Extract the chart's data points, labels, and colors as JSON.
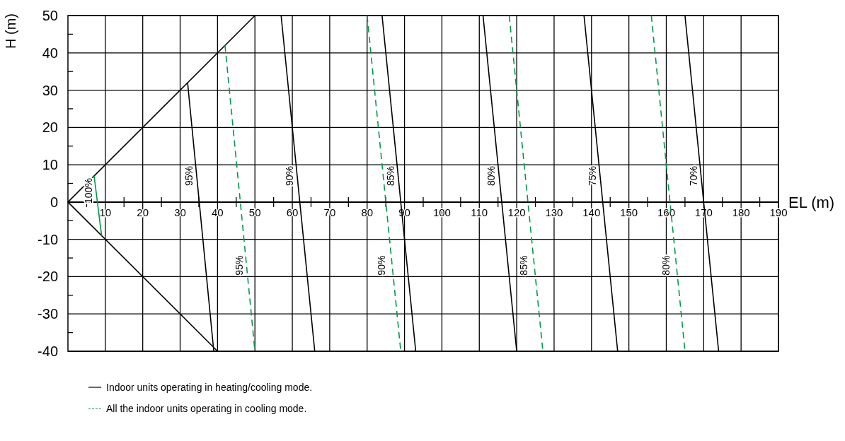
{
  "chart_data": {
    "type": "line",
    "xlabel": "EL (m)",
    "ylabel": "H (m)",
    "xlim": [
      0,
      190
    ],
    "ylim": [
      -40,
      50
    ],
    "xticks": [
      {
        "value": 5,
        "label": null
      },
      10,
      {
        "value": 15,
        "label": null
      },
      20,
      {
        "value": 25,
        "label": null
      },
      30,
      {
        "value": 35,
        "label": null
      },
      40,
      {
        "value": 45,
        "label": null
      },
      50,
      {
        "value": 55,
        "label": null
      },
      60,
      {
        "value": 65,
        "label": null
      },
      70,
      {
        "value": 75,
        "label": null
      },
      80,
      {
        "value": 85,
        "label": null
      },
      90,
      {
        "value": 95,
        "label": null
      },
      100,
      {
        "value": 105,
        "label": null
      },
      110,
      {
        "value": 115,
        "label": null
      },
      120,
      {
        "value": 125,
        "label": null
      },
      130,
      {
        "value": 135,
        "label": null
      },
      140,
      {
        "value": 145,
        "label": null
      },
      150,
      {
        "value": 155,
        "label": null
      },
      160,
      {
        "value": 165,
        "label": null
      },
      170,
      {
        "value": 175,
        "label": null
      },
      180,
      {
        "value": 185,
        "label": null
      },
      190
    ],
    "yticks": [
      -40,
      {
        "value": -35,
        "label": null
      },
      -30,
      {
        "value": -25,
        "label": null
      },
      -20,
      {
        "value": -15,
        "label": null
      },
      -10,
      {
        "value": -5,
        "label": null
      },
      0,
      {
        "value": 5,
        "label": null
      },
      10,
      {
        "value": 15,
        "label": null
      },
      20,
      {
        "value": 25,
        "label": null
      },
      30,
      {
        "value": 35,
        "label": null
      },
      40,
      {
        "value": 45,
        "label": null
      },
      50
    ],
    "grid": true,
    "legend": "bottom",
    "marker": "none",
    "series": [
      {
        "name": "Indoor units operating in heating/cooling mode.",
        "color": "#000000",
        "line_style": "solid",
        "x": [
          0,
          50,
          null,
          0,
          40,
          null,
          32,
          39,
          null,
          57,
          66,
          null,
          84,
          93,
          null,
          111,
          120,
          null,
          138,
          147,
          null,
          165,
          174
        ],
        "values": [
          0,
          50,
          null,
          0,
          -40,
          null,
          32,
          -40,
          null,
          50,
          -40,
          null,
          50,
          -40,
          null,
          50,
          -40,
          null,
          50,
          -40,
          null,
          50,
          -40
        ]
      },
      {
        "name": "All the indoor units operating in cooling mode.",
        "color": "#00994c",
        "line_style": "dashed",
        "x": [
          42,
          50,
          null,
          80,
          89,
          null,
          118,
          127,
          null,
          156,
          165
        ],
        "values": [
          42,
          -40,
          null,
          50,
          -40,
          null,
          50,
          -40,
          null,
          50,
          -40
        ]
      },
      {
        "color": "#00994c",
        "line_style": "solid",
        "x": [
          7,
          9
        ],
        "values": [
          7,
          -9
        ]
      }
    ],
    "annotations": [
      {
        "text": "100%",
        "x": 7.5,
        "y": 3
      },
      {
        "text": "95%",
        "x": 34.4,
        "y": 7
      },
      {
        "text": "90%",
        "x": 61.3,
        "y": 7
      },
      {
        "text": "85%",
        "x": 88.3,
        "y": 7
      },
      {
        "text": "80%",
        "x": 115.3,
        "y": 7
      },
      {
        "text": "75%",
        "x": 142.3,
        "y": 7
      },
      {
        "text": "70%",
        "x": 169.3,
        "y": 7
      },
      {
        "text": "95%",
        "x": 47.8,
        "y": -17
      },
      {
        "text": "90%",
        "x": 86,
        "y": -17
      },
      {
        "text": "85%",
        "x": 124,
        "y": -17
      },
      {
        "text": "80%",
        "x": 162,
        "y": -17
      }
    ]
  }
}
